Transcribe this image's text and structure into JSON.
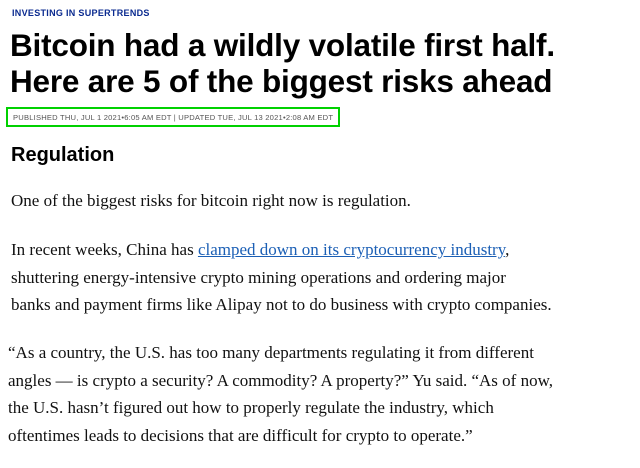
{
  "article": {
    "kicker": "INVESTING IN SUPERTRENDS",
    "headline_line1": "Bitcoin had a wildly volatile first half.",
    "headline_line2": "Here are 5 of the biggest risks ahead",
    "timestamp": "PUBLISHED THU, JUL 1 2021•6:05 AM EDT | UPDATED TUE, JUL 13 2021•2:08 AM EDT",
    "section_heading": "Regulation",
    "paragraph1": "One of the biggest risks for bitcoin right now is regulation.",
    "paragraph2": {
      "line1_before": "In recent weeks, China has ",
      "line1_link": "clamped down on its cryptocurrency industry",
      "line1_after": ",",
      "line2": "shuttering energy-intensive crypto mining operations and ordering major",
      "line3": "banks and payment firms like Alipay not to do business with crypto companies."
    },
    "paragraph3": {
      "line1": "“As a country, the U.S. has too many departments regulating it from different",
      "line2": "angles — is crypto a security? A commodity? A property?” Yu said. “As of now,",
      "line3": "the U.S. hasn’t figured out how to properly regulate the industry, which",
      "line4": "oftentimes leads to decisions that are difficult for crypto to operate.”"
    }
  },
  "colors": {
    "kicker": "#0a2a8f",
    "link": "#1b5fb5",
    "highlight_box": "#00d100",
    "timestamp_text": "#555555"
  }
}
